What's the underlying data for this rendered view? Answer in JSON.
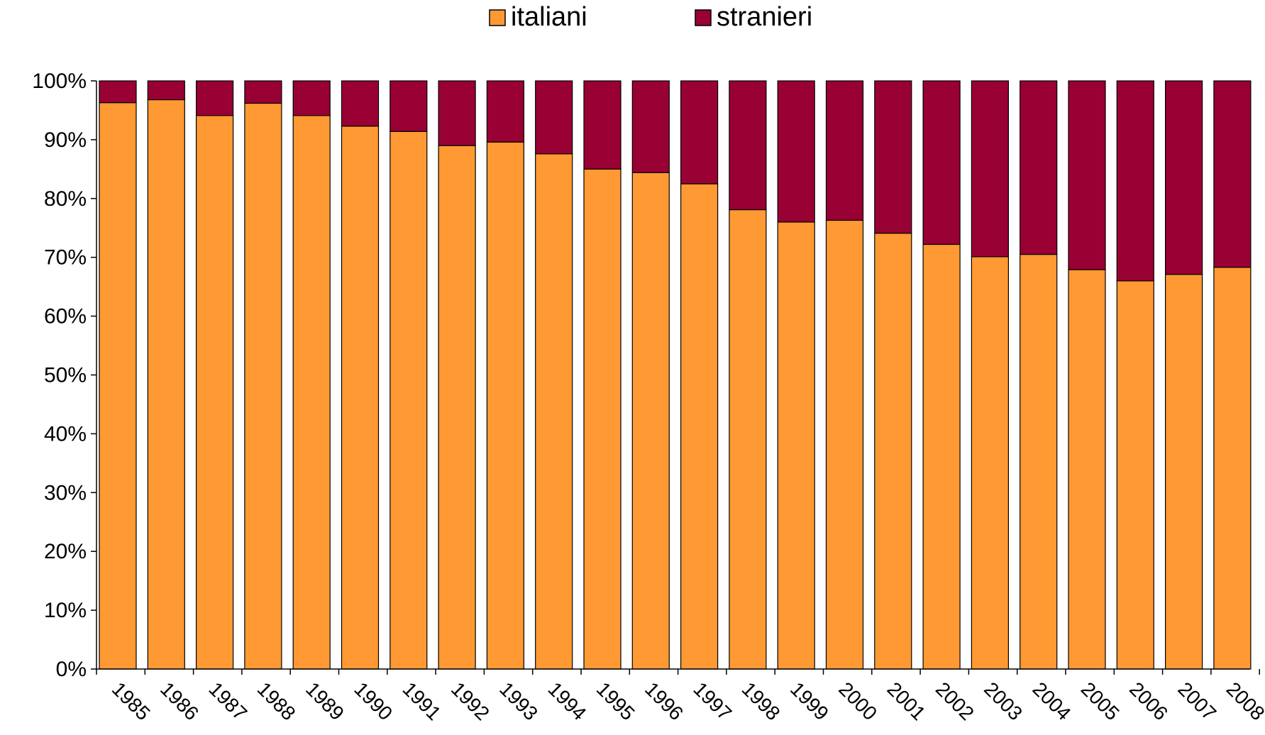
{
  "chart_data": {
    "type": "bar",
    "stacked": true,
    "normalized_percent": true,
    "categories": [
      "1985",
      "1986",
      "1987",
      "1988",
      "1989",
      "1990",
      "1991",
      "1992",
      "1993",
      "1994",
      "1995",
      "1996",
      "1997",
      "1998",
      "1999",
      "2000",
      "2001",
      "2002",
      "2003",
      "2004",
      "2005",
      "2006",
      "2007",
      "2008"
    ],
    "series": [
      {
        "name": "italiani",
        "color": "#FF9933",
        "values": [
          96.3,
          96.8,
          94.1,
          96.2,
          94.1,
          92.3,
          91.4,
          89.0,
          89.6,
          87.6,
          85.0,
          84.4,
          82.5,
          78.1,
          76.0,
          76.3,
          74.1,
          72.2,
          70.1,
          70.5,
          67.9,
          66.0,
          67.1,
          68.3
        ]
      },
      {
        "name": "stranieri",
        "color": "#990033",
        "values": [
          3.7,
          3.2,
          5.9,
          3.8,
          5.9,
          7.7,
          8.6,
          11.0,
          10.4,
          12.4,
          15.0,
          15.6,
          17.5,
          21.9,
          24.0,
          23.7,
          25.9,
          27.8,
          29.9,
          29.5,
          32.1,
          34.0,
          32.9,
          31.7
        ]
      }
    ],
    "ylim": [
      0,
      100
    ],
    "y_ticks": [
      "0%",
      "10%",
      "20%",
      "30%",
      "40%",
      "50%",
      "60%",
      "70%",
      "80%",
      "90%",
      "100%"
    ],
    "xlabel": "",
    "ylabel": "",
    "title": "",
    "grid": false,
    "legend_position": "top-center",
    "x_tick_rotation": "diagonal"
  }
}
